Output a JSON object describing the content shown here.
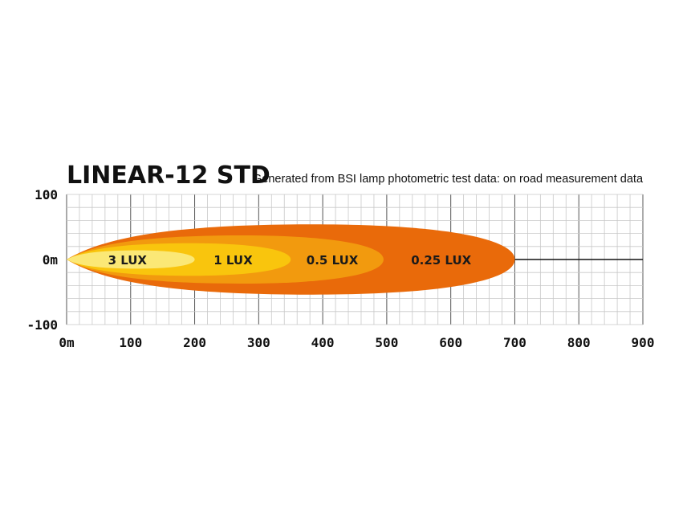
{
  "chart_data": {
    "type": "area",
    "title": "LINEAR-12 STD",
    "subtitle": "Generated from BSI lamp photometric test data: on road measurement data",
    "x_unit": "m",
    "y_unit": "m",
    "xlim": [
      0,
      900
    ],
    "ylim": [
      -100,
      100
    ],
    "x_ticks": [
      "0m",
      "100",
      "200",
      "300",
      "400",
      "500",
      "600",
      "700",
      "800",
      "900"
    ],
    "y_ticks": [
      "100",
      "0m",
      "-100"
    ],
    "grid": true,
    "series": [
      {
        "name": "0.25 LUX",
        "color": "#e96a0a",
        "reach": 700,
        "half_width": 54,
        "label_x": 585
      },
      {
        "name": "0.5 LUX",
        "color": "#f29a0e",
        "reach": 495,
        "half_width": 37,
        "label_x": 415
      },
      {
        "name": "1 LUX",
        "color": "#f9c50d",
        "reach": 350,
        "half_width": 25,
        "label_x": 260
      },
      {
        "name": "3 LUX",
        "color": "#fbe876",
        "reach": 200,
        "half_width": 14,
        "label_x": 95
      }
    ]
  }
}
